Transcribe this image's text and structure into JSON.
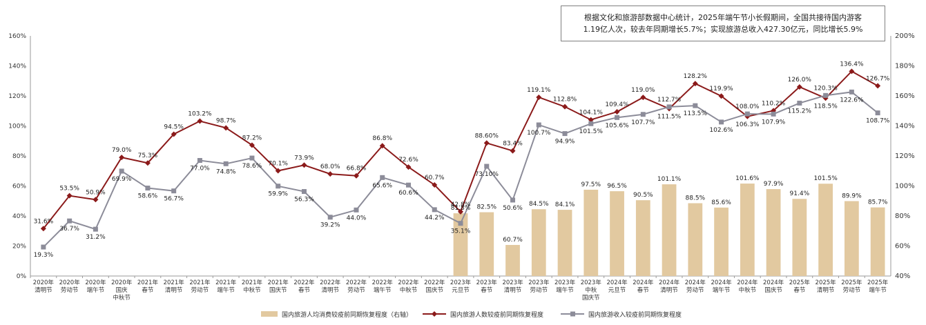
{
  "annotation": {
    "line1": "根据文化和旅游部数据中心统计，2025年端午节小长假期间，全国共接待国内游客",
    "line2": "1.19亿人次，较去年同期增长5.7%；实现旅游总收入427.30亿元，同比增长5.9%"
  },
  "chart_data": {
    "type": "combo",
    "categories": [
      [
        "2020年",
        "清明节"
      ],
      [
        "2020年",
        "劳动节"
      ],
      [
        "2020年",
        "端午节"
      ],
      [
        "2020年",
        "国庆",
        "中秋节"
      ],
      [
        "2021年",
        "春节"
      ],
      [
        "2021年",
        "清明节"
      ],
      [
        "2021年",
        "劳动节"
      ],
      [
        "2021年",
        "端午节"
      ],
      [
        "2021年",
        "中秋节"
      ],
      [
        "2021年",
        "国庆节"
      ],
      [
        "2022年",
        "春节"
      ],
      [
        "2022年",
        "清明节"
      ],
      [
        "2022年",
        "劳动节"
      ],
      [
        "2022年",
        "端午节"
      ],
      [
        "2022年",
        "中秋节"
      ],
      [
        "2022年",
        "国庆节"
      ],
      [
        "2023年",
        "元旦节"
      ],
      [
        "2023年",
        "春节"
      ],
      [
        "2023年",
        "清明节"
      ],
      [
        "2023年",
        "劳动节"
      ],
      [
        "2023年",
        "端午节"
      ],
      [
        "2023年",
        "中秋",
        "国庆节"
      ],
      [
        "2024年",
        "元旦节"
      ],
      [
        "2024年",
        "春节"
      ],
      [
        "2024年",
        "清明节"
      ],
      [
        "2024年",
        "劳动节"
      ],
      [
        "2024年",
        "端午节"
      ],
      [
        "2024年",
        "中秋节"
      ],
      [
        "2024年",
        "国庆节"
      ],
      [
        "2025年",
        "春节"
      ],
      [
        "2025年",
        "清明节"
      ],
      [
        "2025年",
        "劳动节"
      ],
      [
        "2025年",
        "端午节"
      ]
    ],
    "y_left": {
      "min": 0,
      "max": 160,
      "step": 20,
      "unit": "%"
    },
    "y_right": {
      "min": 40,
      "max": 200,
      "step": 20,
      "unit": "%"
    },
    "series": [
      {
        "name": "国内旅游人均消费较疫前同期恢复程度（右轴）",
        "type": "bar",
        "axis": "right",
        "color": "#e2c9a0",
        "values": [
          null,
          null,
          null,
          null,
          null,
          null,
          null,
          null,
          null,
          null,
          null,
          null,
          null,
          null,
          null,
          null,
          81.8,
          82.5,
          60.7,
          84.5,
          84.1,
          97.5,
          96.5,
          90.5,
          101.1,
          88.5,
          85.6,
          101.6,
          97.9,
          91.4,
          101.5,
          89.9,
          85.7
        ],
        "labels": [
          null,
          null,
          null,
          null,
          null,
          null,
          null,
          null,
          null,
          null,
          null,
          null,
          null,
          null,
          null,
          null,
          "81.8%",
          "82.5%",
          "60.7%",
          "84.5%",
          "84.1%",
          "97.5%",
          "96.5%",
          "90.5%",
          "101.1%",
          "88.5%",
          "85.6%",
          "101.6%",
          "97.9%",
          "91.4%",
          "101.5%",
          "89.9%",
          "85.7%"
        ]
      },
      {
        "name": "国内旅游人数较疫前同期恢复程度",
        "type": "line",
        "axis": "left",
        "color": "#8b1a1a",
        "marker": "diamond",
        "values": [
          31.6,
          53.5,
          50.9,
          79.0,
          75.3,
          94.5,
          103.2,
          98.7,
          87.2,
          70.1,
          73.9,
          68.0,
          66.8,
          86.8,
          72.6,
          60.7,
          42.8,
          88.6,
          83.4,
          119.1,
          112.8,
          104.1,
          109.4,
          119.0,
          111.5,
          128.2,
          119.9,
          106.3,
          110.2,
          126.0,
          118.5,
          136.4,
          126.7
        ],
        "labels": [
          "31.6%",
          "53.5%",
          "50.9%",
          "79.0%",
          "75.3%",
          "94.5%",
          "103.2%",
          "98.7%",
          "87.2%",
          "70.1%",
          "73.9%",
          "68.0%",
          "66.8%",
          "86.8%",
          "72.6%",
          "60.7%",
          "42.8%",
          "88.60%",
          "83.4%",
          "119.1%",
          "112.8%",
          "104.1%",
          "109.4%",
          "119.0%",
          "111.5%",
          "128.2%",
          "119.9%",
          "106.3%",
          "110.2%",
          "126.0%",
          "118.5%",
          "136.4%",
          "126.7%"
        ]
      },
      {
        "name": "国内旅游收入较疫前同期恢复程度",
        "type": "line",
        "axis": "left",
        "color": "#8c8c99",
        "marker": "square",
        "values": [
          19.3,
          36.7,
          31.2,
          69.9,
          58.6,
          56.7,
          77.0,
          74.8,
          78.6,
          59.9,
          56.3,
          39.2,
          44.0,
          65.6,
          60.6,
          44.2,
          35.1,
          73.1,
          50.6,
          100.7,
          94.9,
          101.5,
          105.6,
          107.7,
          112.7,
          113.5,
          102.6,
          108.0,
          107.9,
          115.2,
          120.3,
          122.6,
          108.7
        ],
        "labels": [
          "19.3%",
          "36.7%",
          "31.2%",
          "69.9%",
          "58.6%",
          "56.7%",
          "77.0%",
          "74.8%",
          "78.6%",
          "59.9%",
          "56.3%",
          "39.2%",
          "44.0%",
          "65.6%",
          "60.6%",
          "44.2%",
          "35.1%",
          "73.10%",
          "50.6%",
          "100.7%",
          "94.9%",
          "101.5%",
          "105.6%",
          "107.7%",
          "112.7%",
          "113.5%",
          "102.6%",
          "108.0%",
          "107.9%",
          "115.2%",
          "120.3%",
          "122.6%",
          "108.7%"
        ]
      }
    ],
    "grid": false,
    "legend_position": "bottom"
  }
}
